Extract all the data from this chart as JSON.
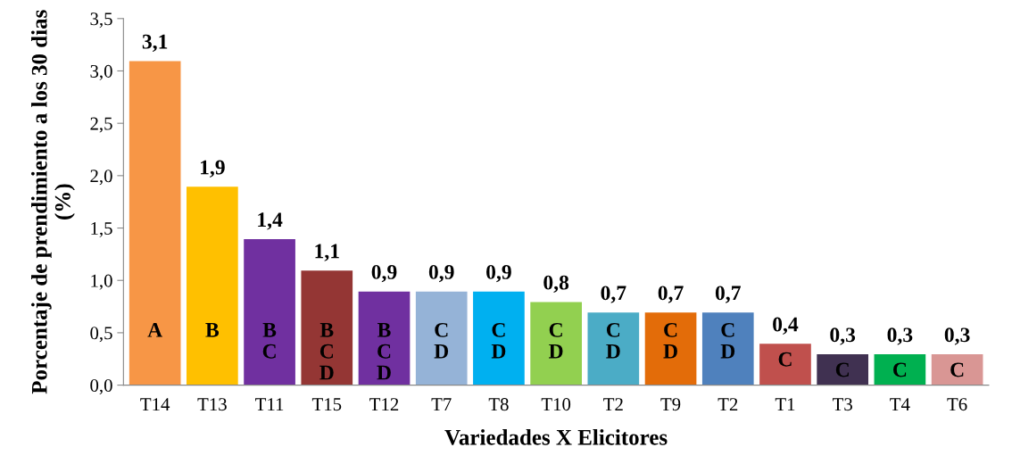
{
  "chart_data": {
    "type": "bar",
    "xlabel": "Variedades X Elicitores",
    "ylabel": "Porcentaje de prendimiento a los 30 dias (%)",
    "categories": [
      "T14",
      "T13",
      "T11",
      "T15",
      "T12",
      "T7",
      "T8",
      "T10",
      "T2",
      "T9",
      "T2",
      "T1",
      "T3",
      "T4",
      "T6"
    ],
    "values": [
      3.1,
      1.9,
      1.4,
      1.1,
      0.9,
      0.9,
      0.9,
      0.8,
      0.7,
      0.7,
      0.7,
      0.4,
      0.3,
      0.3,
      0.3
    ],
    "colors": [
      "#f79646",
      "#ffc000",
      "#7030a0",
      "#943634",
      "#7030a0",
      "#95b3d7",
      "#00b0f0",
      "#92d050",
      "#4bacc6",
      "#e36c09",
      "#4f81bd",
      "#c0504d",
      "#403151",
      "#00b050",
      "#d99694"
    ],
    "value_labels": [
      "3,1",
      "1,9",
      "1,4",
      "1,1",
      "0,9",
      "0,9",
      "0,9",
      "0,8",
      "0,7",
      "0,7",
      "0,7",
      "0,4",
      "0,3",
      "0,3",
      "0,3"
    ],
    "annotations": [
      "A",
      "B",
      "B\nC",
      "B\nC\nD",
      "B\nC\nD",
      "C\nD",
      "C\nD",
      "C\nD",
      "C\nD",
      "C\nD",
      "C\nD",
      "C",
      "C",
      "C",
      "C"
    ],
    "ylim": [
      0,
      3.5
    ],
    "yticks": [
      {
        "value": 0,
        "label": "0,0"
      },
      {
        "value": 0.5,
        "label": "0,5"
      },
      {
        "value": 1,
        "label": "1,0"
      },
      {
        "value": 1.5,
        "label": "1,5"
      },
      {
        "value": 2,
        "label": "2,0"
      },
      {
        "value": 2.5,
        "label": "2,5"
      },
      {
        "value": 3,
        "label": "3,0"
      },
      {
        "value": 3.5,
        "label": "3,5"
      }
    ],
    "grid": false,
    "legend": false
  }
}
